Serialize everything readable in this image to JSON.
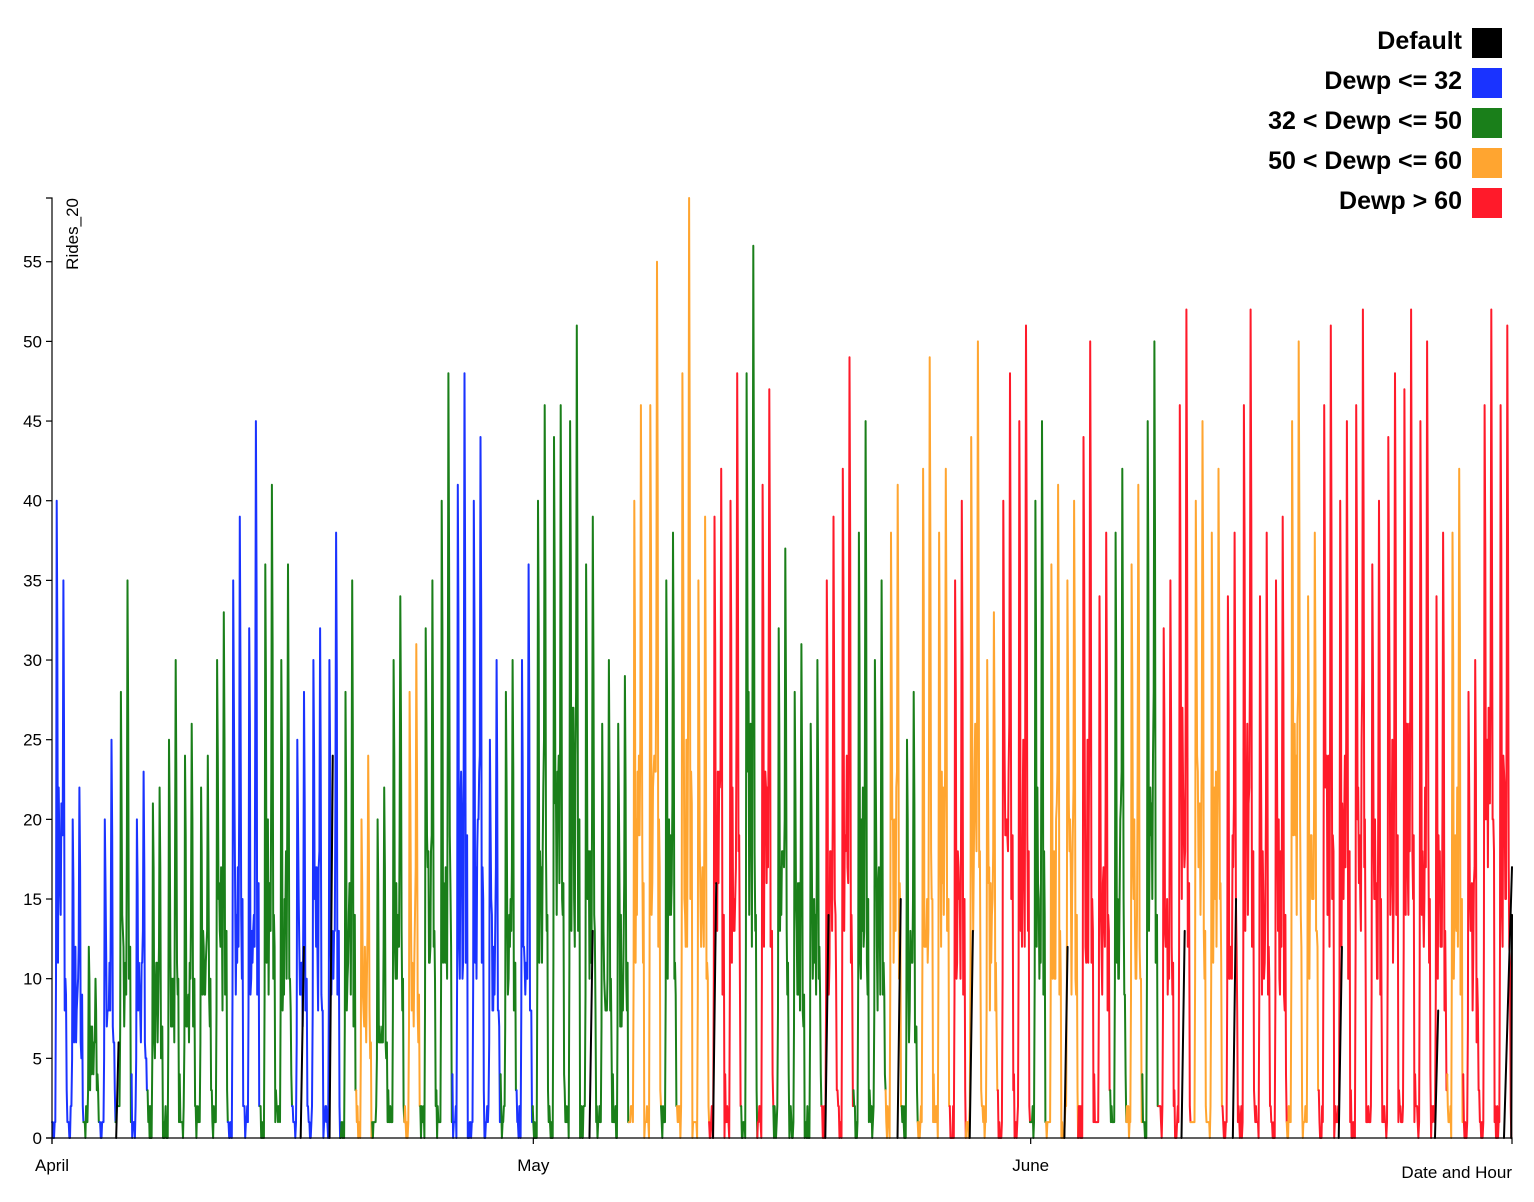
{
  "chart_data": {
    "type": "line",
    "xlabel": "Date and Hour",
    "ylabel": "Rides_20",
    "ylim": [
      0,
      59
    ],
    "y_ticks": [
      0,
      5,
      10,
      15,
      20,
      25,
      30,
      35,
      40,
      45,
      50,
      55
    ],
    "x_ticks": [
      {
        "label": "April",
        "day": 0
      },
      {
        "label": "May",
        "day": 30
      },
      {
        "label": "June",
        "day": 61
      }
    ],
    "x_domain_days": [
      0,
      91
    ],
    "legend_position": "top-right",
    "legend": [
      {
        "name": "Default",
        "color": "#000000"
      },
      {
        "name": "Dewp <= 32",
        "color": "#1a33ff"
      },
      {
        "name": "32 < Dewp <= 50",
        "color": "#1a7f1a"
      },
      {
        "name": "50 < Dewp <= 60",
        "color": "#ffa530"
      },
      {
        "name": "Dewp > 60",
        "color": "#ff1a2a"
      }
    ],
    "category_by_day": [
      1,
      1,
      2,
      1,
      2,
      1,
      2,
      2,
      2,
      2,
      2,
      1,
      1,
      2,
      2,
      1,
      1,
      1,
      2,
      3,
      2,
      2,
      3,
      2,
      2,
      1,
      1,
      1,
      2,
      1,
      2,
      2,
      2,
      2,
      2,
      2,
      3,
      3,
      2,
      3,
      3,
      4,
      4,
      2,
      4,
      2,
      2,
      2,
      4,
      4,
      2,
      2,
      3,
      2,
      3,
      3,
      4,
      3,
      3,
      4,
      4,
      2,
      3,
      3,
      4,
      4,
      2,
      3,
      2,
      4,
      4,
      3,
      3,
      4,
      4,
      4,
      4,
      3,
      3,
      4,
      4,
      4,
      4,
      4,
      4,
      4,
      4,
      3,
      4,
      4,
      4
    ],
    "daily_peak_evening": [
      35,
      22,
      10,
      25,
      35,
      23,
      22,
      30,
      26,
      24,
      33,
      39,
      45,
      41,
      36,
      28,
      32,
      38,
      35,
      24,
      22,
      34,
      31,
      35,
      48,
      48,
      44,
      30,
      30,
      36,
      46,
      46,
      51,
      39,
      30,
      29,
      46,
      55,
      38,
      59,
      39,
      42,
      48,
      56,
      47,
      37,
      31,
      30,
      39,
      49,
      45,
      35,
      41,
      28,
      49,
      42,
      40,
      50,
      33,
      48,
      51,
      45,
      41,
      40,
      50,
      38,
      42,
      41,
      50,
      35,
      52,
      45,
      42,
      38,
      52,
      38,
      39,
      50,
      38,
      51,
      45,
      52,
      40,
      48,
      52,
      50,
      38,
      42,
      30,
      52,
      51
    ],
    "daily_peak_morning": [
      40,
      20,
      12,
      20,
      28,
      20,
      21,
      25,
      24,
      22,
      30,
      35,
      32,
      36,
      30,
      25,
      30,
      30,
      28,
      20,
      20,
      30,
      28,
      32,
      40,
      41,
      40,
      25,
      28,
      30,
      40,
      44,
      45,
      36,
      26,
      26,
      40,
      46,
      35,
      48,
      35,
      39,
      40,
      48,
      41,
      32,
      28,
      26,
      35,
      42,
      38,
      30,
      38,
      25,
      42,
      38,
      35,
      44,
      30,
      40,
      45,
      40,
      36,
      35,
      44,
      34,
      38,
      36,
      45,
      32,
      46,
      40,
      38,
      34,
      46,
      34,
      35,
      45,
      34,
      46,
      40,
      46,
      36,
      44,
      47,
      45,
      34,
      38,
      28,
      46,
      46
    ],
    "default_segments": [
      {
        "day_start": 4.0,
        "day_end": 4.15,
        "value": 6
      },
      {
        "day_start": 15.5,
        "day_end": 15.7,
        "value": 12
      },
      {
        "day_start": 17.3,
        "day_end": 17.5,
        "value": 24
      },
      {
        "day_start": 33.5,
        "day_end": 33.7,
        "value": 13
      },
      {
        "day_start": 41.2,
        "day_end": 41.4,
        "value": 16
      },
      {
        "day_start": 48.2,
        "day_end": 48.4,
        "value": 14
      },
      {
        "day_start": 52.7,
        "day_end": 52.9,
        "value": 15
      },
      {
        "day_start": 57.2,
        "day_end": 57.4,
        "value": 13
      },
      {
        "day_start": 63.1,
        "day_end": 63.3,
        "value": 12
      },
      {
        "day_start": 70.4,
        "day_end": 70.6,
        "value": 13
      },
      {
        "day_start": 73.6,
        "day_end": 73.8,
        "value": 15
      },
      {
        "day_start": 80.2,
        "day_end": 80.4,
        "value": 12
      },
      {
        "day_start": 86.2,
        "day_end": 86.4,
        "value": 8
      },
      {
        "day_start": 90.5,
        "day_end": 91.0,
        "value": 17
      }
    ]
  }
}
